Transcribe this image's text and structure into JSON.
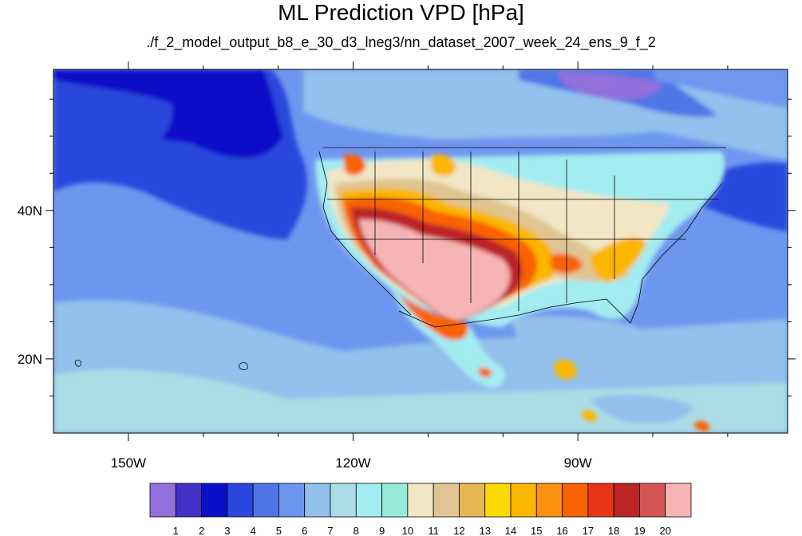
{
  "title": "ML Prediction VPD [hPa]",
  "subtitle": "./f_2_model_output_b8_e_30_d3_lneg3/nn_dataset_2007_week_24_ens_9_f_2",
  "map": {
    "lon_range": [
      -160,
      -62
    ],
    "lat_range": [
      10,
      59
    ],
    "lon_ticks": [
      {
        "value": -150,
        "label": "150W"
      },
      {
        "value": -120,
        "label": "120W"
      },
      {
        "value": -90,
        "label": "90W"
      }
    ],
    "lat_ticks": [
      {
        "value": 40,
        "label": "40N"
      },
      {
        "value": 20,
        "label": "20N"
      }
    ]
  },
  "colorbar": {
    "labels": [
      "1",
      "2",
      "3",
      "4",
      "5",
      "6",
      "7",
      "8",
      "9",
      "10",
      "11",
      "12",
      "13",
      "14",
      "15",
      "16",
      "17",
      "18",
      "19",
      "20"
    ],
    "colors": [
      "#9370db",
      "#4231c9",
      "#0a10c8",
      "#2b46dc",
      "#4f74e6",
      "#6f96ef",
      "#93c0ec",
      "#abdde6",
      "#a3ecf0",
      "#96ecd9",
      "#f2e6c4",
      "#e0c592",
      "#e7b654",
      "#fbd800",
      "#fbb600",
      "#f99010",
      "#f96200",
      "#e83518",
      "#bc2426",
      "#d45555",
      "#f7b4b4"
    ]
  },
  "chart_data": {
    "type": "heatmap",
    "title": "ML Prediction VPD [hPa]",
    "subtitle": "./f_2_model_output_b8_e_30_d3_lneg3/nn_dataset_2007_week_24_ens_9_f_2",
    "x_axis": {
      "ticks": [
        "150W",
        "120W",
        "90W"
      ],
      "range": [
        -160,
        -62
      ]
    },
    "y_axis": {
      "ticks": [
        "40N",
        "20N"
      ],
      "range": [
        10,
        59
      ]
    },
    "colorbar_levels": [
      1,
      2,
      3,
      4,
      5,
      6,
      7,
      8,
      9,
      10,
      11,
      12,
      13,
      14,
      15,
      16,
      17,
      18,
      19,
      20
    ],
    "colorbar_units": "hPa"
  }
}
